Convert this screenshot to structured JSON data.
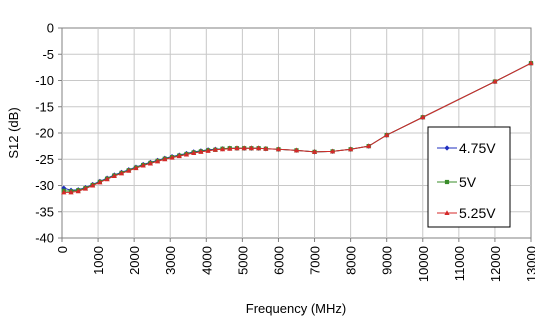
{
  "chart_data": {
    "type": "line",
    "title": "",
    "xlabel": "Frequency (MHz)",
    "ylabel": "S12 (dB)",
    "xlim": [
      0,
      13000
    ],
    "ylim": [
      -40,
      0
    ],
    "x_ticks": [
      "0",
      "1000",
      "2000",
      "3000",
      "4000",
      "5000",
      "6000",
      "7000",
      "8000",
      "9000",
      "10000",
      "11000",
      "12000",
      "13000"
    ],
    "y_ticks": [
      "0",
      "-5",
      "-10",
      "-15",
      "-20",
      "-25",
      "-30",
      "-35",
      "-40"
    ],
    "grid": true,
    "legend_position": "right",
    "x": [
      50,
      250,
      450,
      650,
      850,
      1050,
      1250,
      1450,
      1650,
      1850,
      2050,
      2250,
      2450,
      2650,
      2850,
      3050,
      3250,
      3450,
      3650,
      3850,
      4050,
      4250,
      4450,
      4650,
      4850,
      5050,
      5250,
      5450,
      5650,
      6000,
      6500,
      7000,
      7500,
      8000,
      8500,
      9000,
      10000,
      12000,
      13000
    ],
    "series": [
      {
        "name": "4.75V",
        "color": "#1f2fbf",
        "marker": "diamond",
        "values": [
          -30.5,
          -30.9,
          -30.8,
          -30.4,
          -29.8,
          -29.2,
          -28.6,
          -28.0,
          -27.5,
          -27.0,
          -26.5,
          -26.0,
          -25.6,
          -25.2,
          -24.8,
          -24.5,
          -24.2,
          -23.9,
          -23.6,
          -23.4,
          -23.2,
          -23.1,
          -23.0,
          -22.9,
          -22.9,
          -22.9,
          -22.9,
          -22.9,
          -23.0,
          -23.1,
          -23.3,
          -23.6,
          -23.5,
          -23.1,
          -22.5,
          -20.4,
          -17.0,
          -10.2,
          -6.7
        ]
      },
      {
        "name": "5V",
        "color": "#3a8c2a",
        "marker": "square",
        "values": [
          -31.0,
          -31.1,
          -30.9,
          -30.5,
          -29.9,
          -29.3,
          -28.7,
          -28.1,
          -27.6,
          -27.1,
          -26.6,
          -26.1,
          -25.7,
          -25.3,
          -24.9,
          -24.6,
          -24.3,
          -24.0,
          -23.7,
          -23.5,
          -23.3,
          -23.2,
          -23.0,
          -22.9,
          -22.9,
          -22.9,
          -22.9,
          -22.9,
          -23.0,
          -23.1,
          -23.3,
          -23.6,
          -23.5,
          -23.1,
          -22.5,
          -20.4,
          -17.0,
          -10.2,
          -6.7
        ]
      },
      {
        "name": "5.25V",
        "color": "#d42a2a",
        "marker": "triangle",
        "values": [
          -31.3,
          -31.3,
          -31.1,
          -30.6,
          -30.0,
          -29.4,
          -28.8,
          -28.2,
          -27.7,
          -27.2,
          -26.7,
          -26.2,
          -25.8,
          -25.4,
          -25.0,
          -24.7,
          -24.4,
          -24.1,
          -23.8,
          -23.6,
          -23.4,
          -23.2,
          -23.1,
          -23.0,
          -22.9,
          -22.9,
          -22.9,
          -22.9,
          -23.0,
          -23.1,
          -23.3,
          -23.6,
          -23.5,
          -23.1,
          -22.5,
          -20.4,
          -17.0,
          -10.2,
          -6.7
        ]
      }
    ]
  }
}
